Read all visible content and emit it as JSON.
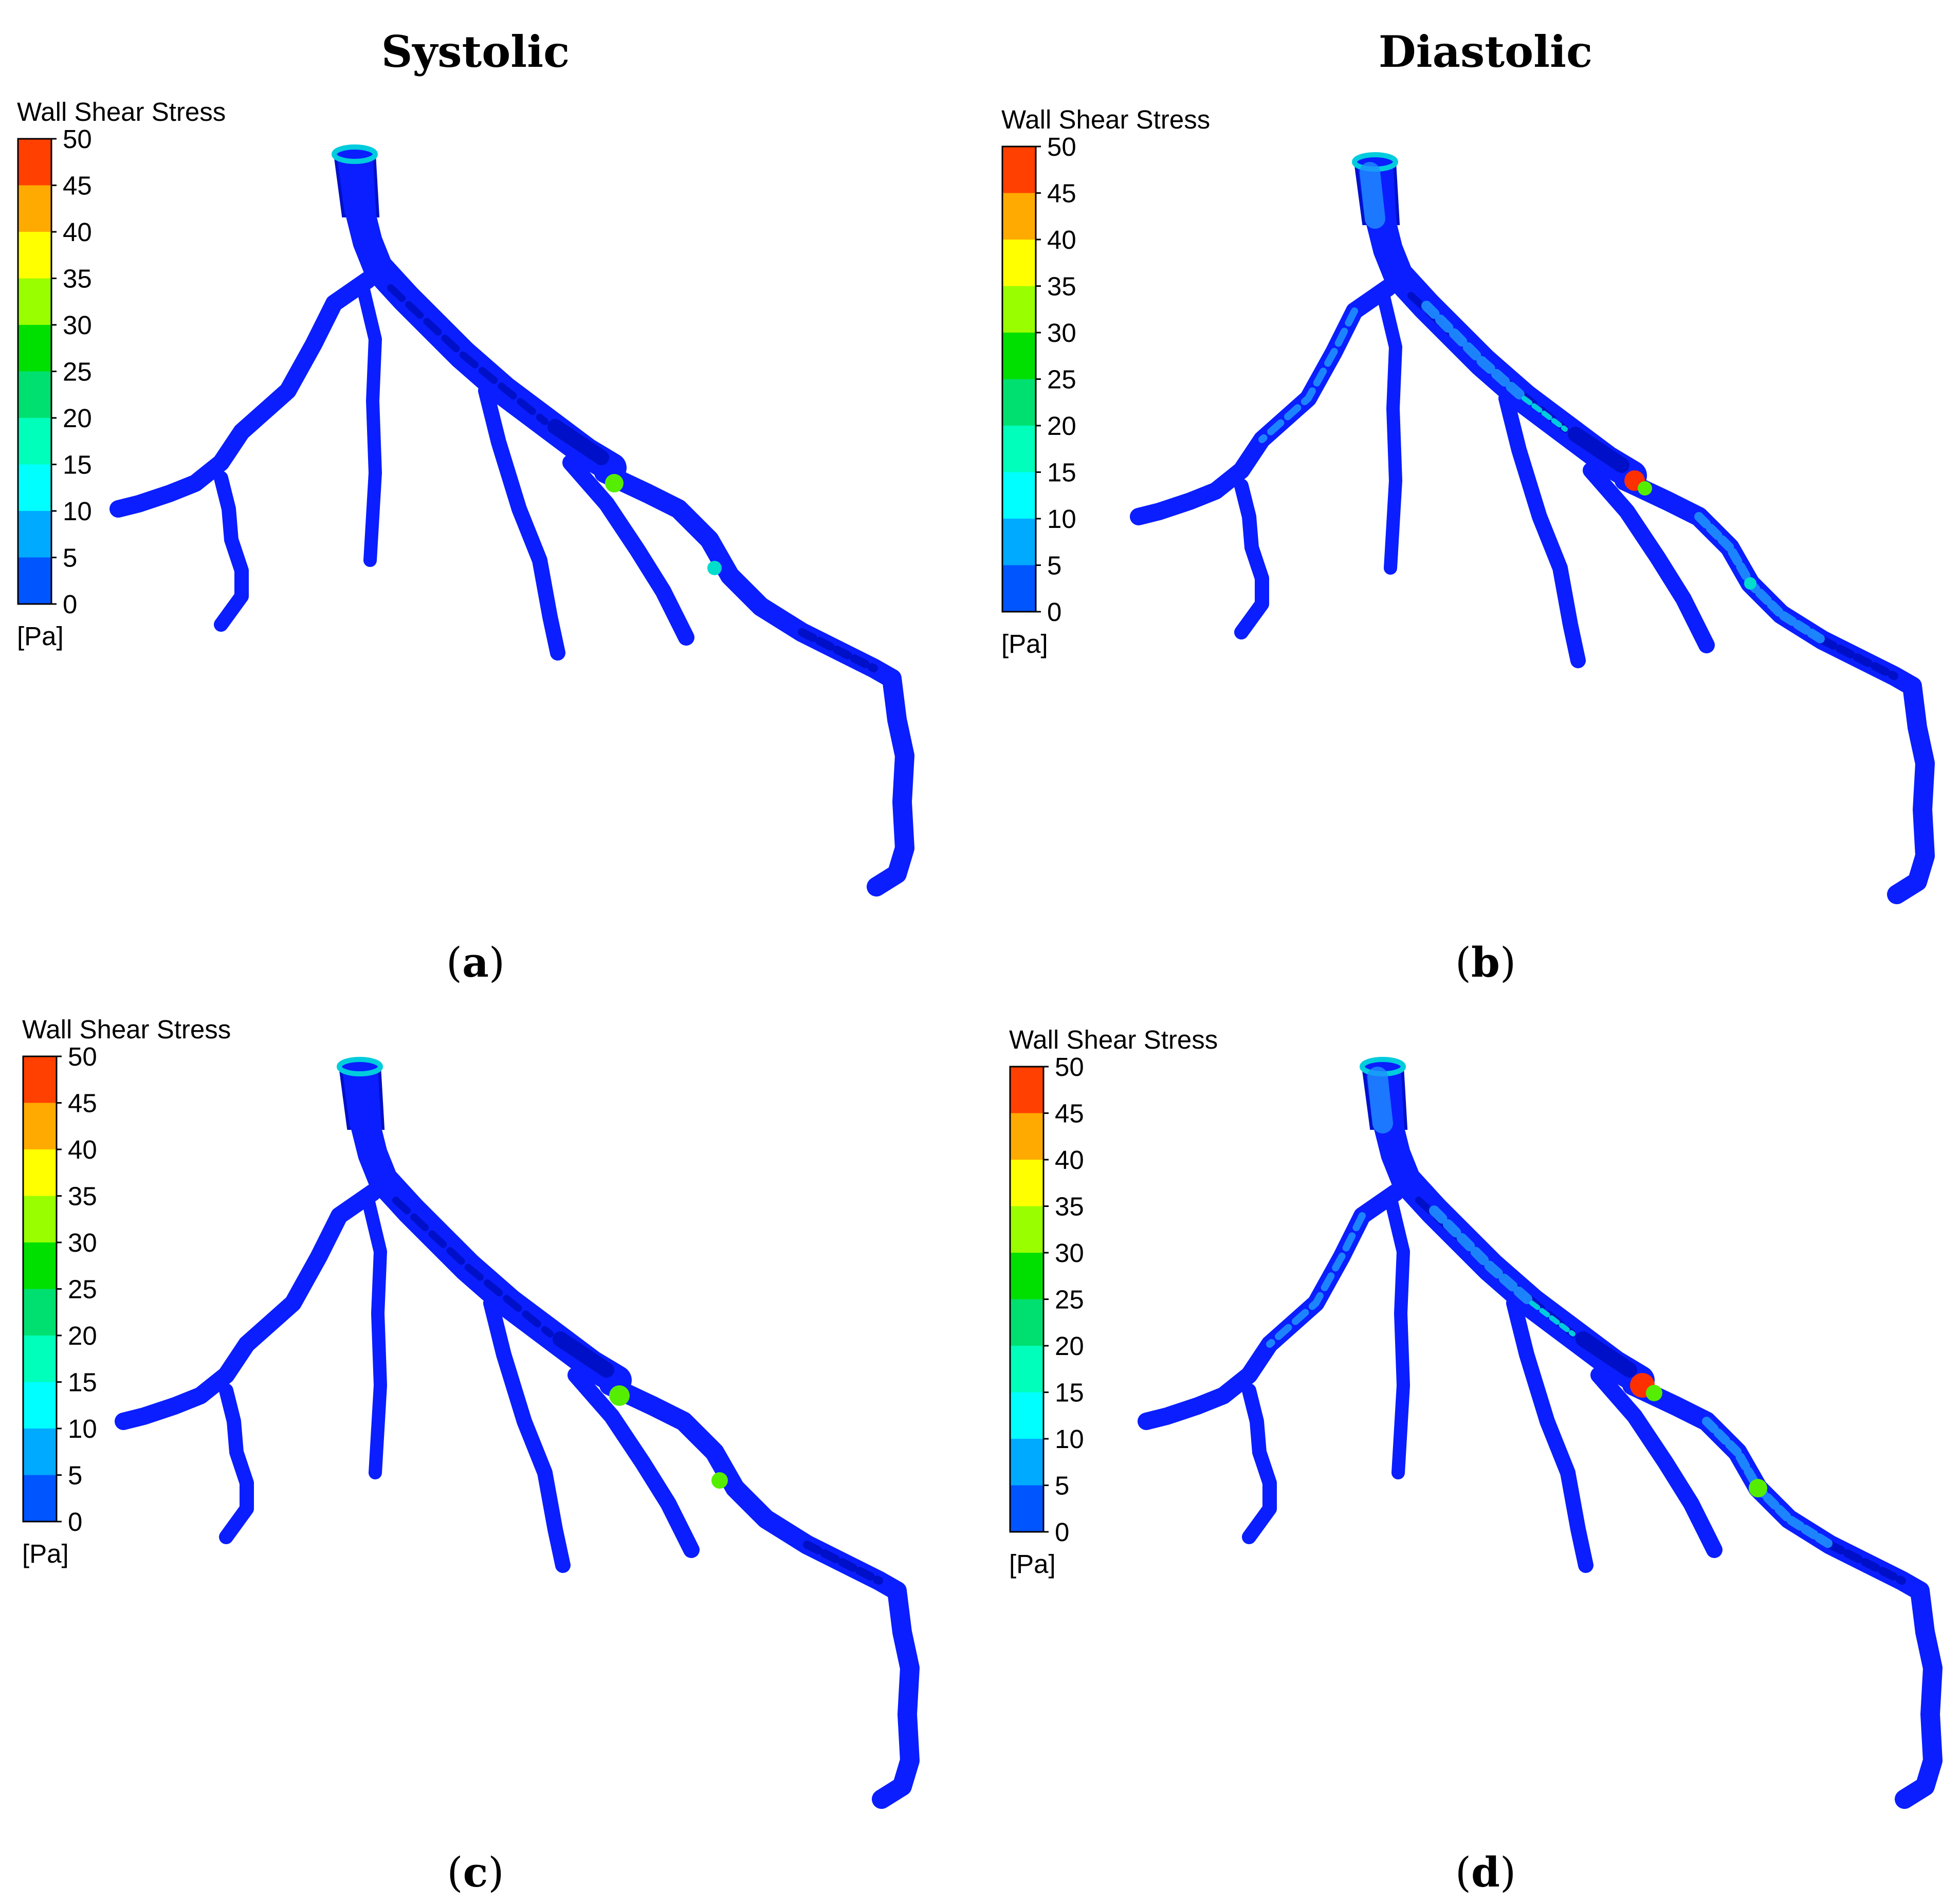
{
  "column_titles": [
    "Systolic",
    "Diastolic"
  ],
  "colorbar": {
    "title": "Wall Shear Stress",
    "unit": "[Pa]",
    "ticks": [
      "50",
      "45",
      "40",
      "35",
      "30",
      "25",
      "20",
      "15",
      "10",
      "5",
      "0"
    ],
    "min": 0,
    "max": 50,
    "colors": [
      "#ff4000",
      "#ffaa00",
      "#ffff00",
      "#99ff00",
      "#00e000",
      "#00e070",
      "#00ffbb",
      "#00ffff",
      "#00aaff",
      "#0055ff"
    ]
  },
  "colors": {
    "vessel_base": "#0a1eff",
    "vessel_dark": "#0010c8",
    "wall_speckle": "#1f8fff",
    "hotspot_high": "#ff3000",
    "hotspot_mid": "#55ee00",
    "hotspot_low": "#00ddcc"
  },
  "panels": [
    {
      "id": "a",
      "label_open": "(",
      "label_letter": "a",
      "label_close": ")",
      "phase": "Systolic"
    },
    {
      "id": "b",
      "label_open": "(",
      "label_letter": "b",
      "label_close": ")",
      "phase": "Diastolic"
    },
    {
      "id": "c",
      "label_open": "(",
      "label_letter": "c",
      "label_close": ")",
      "phase": "Systolic"
    },
    {
      "id": "d",
      "label_open": "(",
      "label_letter": "d",
      "label_close": ")",
      "phase": "Diastolic"
    }
  ]
}
